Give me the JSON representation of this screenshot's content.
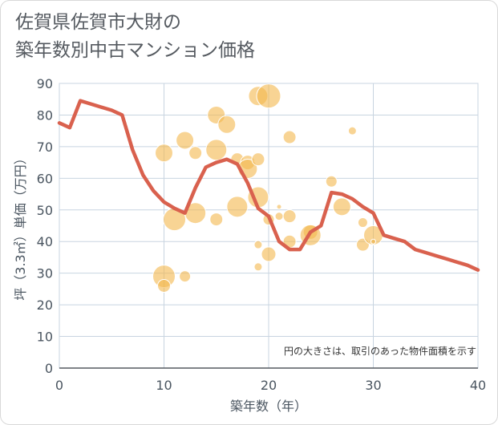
{
  "title_line1": "佐賀県佐賀市大財の",
  "title_line2": "築年数別中古マンション価格",
  "colors": {
    "bubble": "#f3b74d",
    "line": "#d9614e",
    "grid": "#c8d4e0",
    "axis": "#555a60"
  },
  "chart_data": {
    "type": "scatter",
    "xlabel": "築年数（年）",
    "ylabel": "坪（3.3㎡）単価（万円）",
    "xlim": [
      0,
      40
    ],
    "ylim": [
      0,
      90
    ],
    "xticks": [
      "0",
      "10",
      "20",
      "30",
      "40"
    ],
    "yticks": [
      "0",
      "10",
      "20",
      "30",
      "40",
      "50",
      "60",
      "70",
      "80",
      "90"
    ],
    "grid": true,
    "annotation": "円の大きさは、取引のあった物件面積を示す",
    "bubbles": [
      {
        "x": 10,
        "y": 68,
        "r": 11
      },
      {
        "x": 10,
        "y": 29,
        "r": 14
      },
      {
        "x": 10,
        "y": 26,
        "r": 8
      },
      {
        "x": 11,
        "y": 47,
        "r": 14
      },
      {
        "x": 12,
        "y": 72,
        "r": 11
      },
      {
        "x": 12,
        "y": 29,
        "r": 7
      },
      {
        "x": 13,
        "y": 68,
        "r": 8
      },
      {
        "x": 13,
        "y": 49,
        "r": 13
      },
      {
        "x": 15,
        "y": 80,
        "r": 11
      },
      {
        "x": 15,
        "y": 69,
        "r": 13
      },
      {
        "x": 15,
        "y": 47,
        "r": 8
      },
      {
        "x": 16,
        "y": 77,
        "r": 11
      },
      {
        "x": 17,
        "y": 66,
        "r": 8
      },
      {
        "x": 17,
        "y": 51,
        "r": 13
      },
      {
        "x": 18,
        "y": 65,
        "r": 9
      },
      {
        "x": 18,
        "y": 63,
        "r": 12
      },
      {
        "x": 19,
        "y": 86,
        "r": 12
      },
      {
        "x": 19,
        "y": 66,
        "r": 8
      },
      {
        "x": 19,
        "y": 54,
        "r": 13
      },
      {
        "x": 19,
        "y": 39,
        "r": 5
      },
      {
        "x": 19,
        "y": 32,
        "r": 5
      },
      {
        "x": 20,
        "y": 86,
        "r": 15
      },
      {
        "x": 20,
        "y": 47,
        "r": 7
      },
      {
        "x": 20,
        "y": 36,
        "r": 9
      },
      {
        "x": 21,
        "y": 51,
        "r": 3
      },
      {
        "x": 21,
        "y": 48,
        "r": 5
      },
      {
        "x": 22,
        "y": 73,
        "r": 8
      },
      {
        "x": 22,
        "y": 48,
        "r": 8
      },
      {
        "x": 22,
        "y": 40,
        "r": 8
      },
      {
        "x": 24,
        "y": 43,
        "r": 9
      },
      {
        "x": 24,
        "y": 42,
        "r": 13
      },
      {
        "x": 26,
        "y": 59,
        "r": 7
      },
      {
        "x": 27,
        "y": 51,
        "r": 11
      },
      {
        "x": 28,
        "y": 75,
        "r": 5
      },
      {
        "x": 29,
        "y": 46,
        "r": 6
      },
      {
        "x": 29,
        "y": 39,
        "r": 8
      },
      {
        "x": 30,
        "y": 42,
        "r": 12
      },
      {
        "x": 30,
        "y": 40,
        "r": 3
      }
    ],
    "trend_line": {
      "x": [
        0,
        1,
        2,
        3,
        4,
        5,
        6,
        7,
        8,
        9,
        10,
        11,
        12,
        13,
        14,
        15,
        16,
        17,
        18,
        19,
        20,
        21,
        22,
        23,
        24,
        25,
        26,
        27,
        28,
        29,
        30,
        31,
        32,
        33,
        34,
        35,
        36,
        37,
        38,
        39,
        40
      ],
      "y": [
        77.5,
        76,
        84.5,
        83.5,
        82.5,
        81.5,
        80,
        69,
        61,
        56,
        52.5,
        50.5,
        49,
        57,
        63.5,
        65,
        66,
        64.5,
        58.5,
        50.5,
        48,
        40,
        37.5,
        37.5,
        43,
        45,
        55.5,
        55,
        53.5,
        51,
        49,
        42,
        41,
        40,
        37.5,
        36.5,
        35.5,
        34.5,
        33.5,
        32.5,
        31
      ]
    }
  }
}
